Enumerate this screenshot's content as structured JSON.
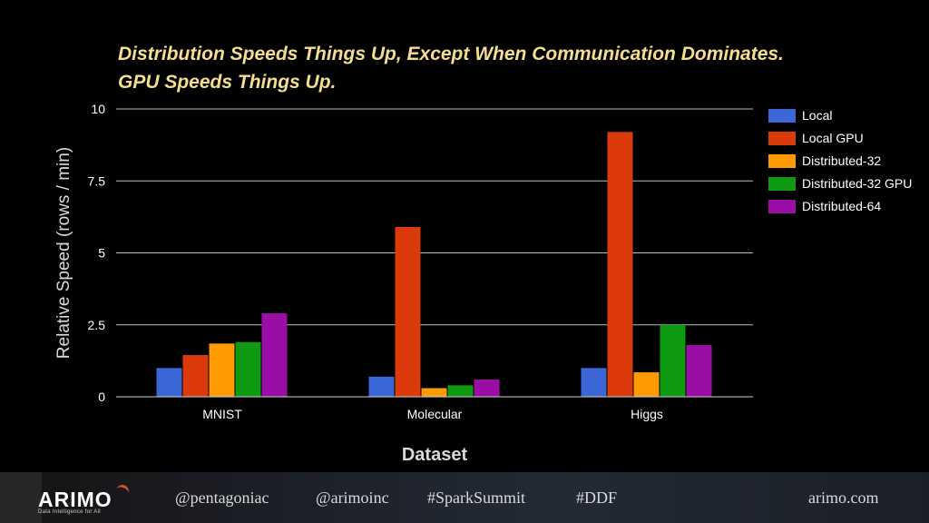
{
  "title": "Distribution Speeds Things Up, Except When Communication Dominates. GPU Speeds Things Up.",
  "footer": {
    "logo": "ARIMO",
    "tagline": "Data Intelligence for All",
    "handle1": "@pentagoniac",
    "handle2": "@arimoinc",
    "hashtag1": "#SparkSummit",
    "hashtag2": "#DDF",
    "site": "arimo.com"
  },
  "chart_data": {
    "type": "bar",
    "title": "Distribution Speeds Things Up, Except When Communication Dominates. GPU Speeds Things Up.",
    "xlabel": "Dataset",
    "ylabel": "Relative Speed (rows / min)",
    "categories": [
      "MNIST",
      "Molecular",
      "Higgs"
    ],
    "ylim": [
      0,
      10
    ],
    "yticks": [
      0,
      2.5,
      5,
      7.5,
      10
    ],
    "ytick_labels": [
      "0",
      "2.5",
      "5",
      "7.5",
      "10"
    ],
    "grid": true,
    "legend_position": "right",
    "series": [
      {
        "name": "Local",
        "color": "#3A66D6",
        "values": [
          1.0,
          0.7,
          1.0
        ]
      },
      {
        "name": "Local GPU",
        "color": "#DB3B0B",
        "values": [
          1.45,
          5.9,
          9.2
        ]
      },
      {
        "name": "Distributed-32",
        "color": "#FF9A00",
        "values": [
          1.85,
          0.3,
          0.85
        ]
      },
      {
        "name": "Distributed-32 GPU",
        "color": "#0E9A12",
        "values": [
          1.9,
          0.4,
          2.5
        ]
      },
      {
        "name": "Distributed-64",
        "color": "#9A0EA5",
        "values": [
          2.9,
          0.6,
          1.8
        ]
      }
    ]
  }
}
